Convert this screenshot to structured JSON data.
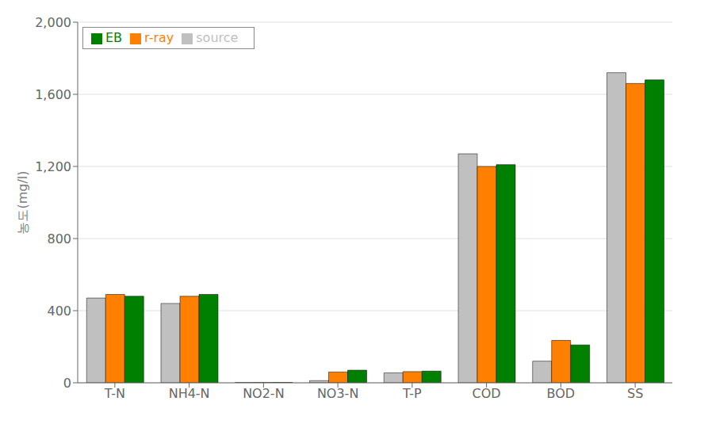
{
  "chart_data": {
    "type": "bar",
    "ylabel": "농도(mg/l)",
    "categories": [
      "T-N",
      "NH4-N",
      "NO2-N",
      "NO3-N",
      "T-P",
      "COD",
      "BOD",
      "SS"
    ],
    "series": [
      {
        "name": "source",
        "color": "#c0c0c0",
        "values": [
          470,
          440,
          2,
          12,
          55,
          1270,
          120,
          1720
        ]
      },
      {
        "name": "r-ray",
        "color": "#ff7f00",
        "values": [
          490,
          480,
          2,
          60,
          62,
          1200,
          235,
          1660
        ]
      },
      {
        "name": "EB",
        "color": "#008000",
        "values": [
          480,
          490,
          2,
          70,
          65,
          1210,
          210,
          1680
        ]
      }
    ],
    "ylim": [
      0,
      2000
    ],
    "yticks": [
      0,
      400,
      800,
      {
        "value": 1200,
        "label": "1,200"
      },
      {
        "value": 1600,
        "label": "1,600"
      },
      {
        "value": 2000,
        "label": "2,000"
      }
    ],
    "grid": true,
    "legend": "upper left"
  }
}
